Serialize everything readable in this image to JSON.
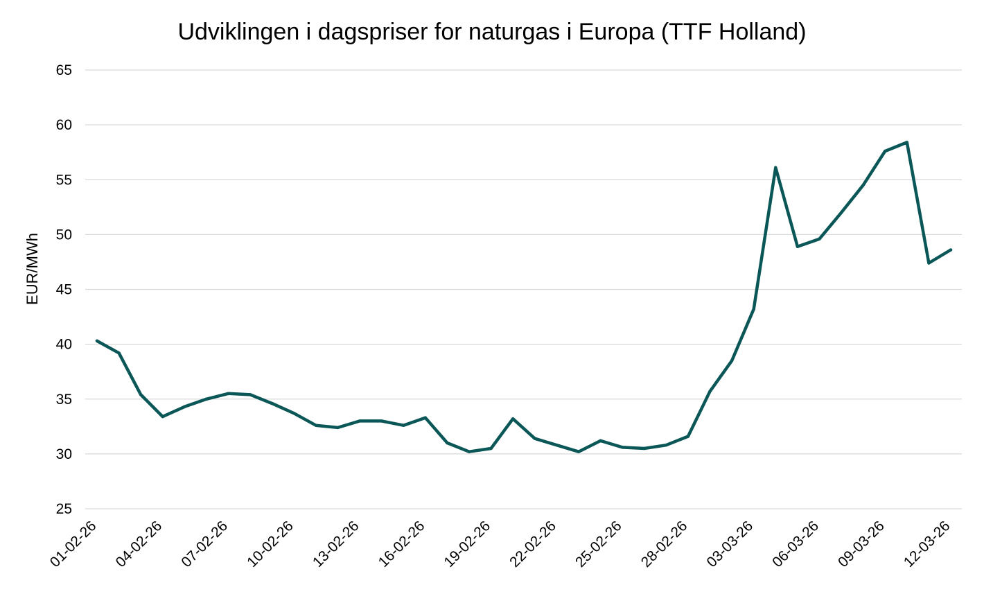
{
  "chart_data": {
    "type": "line",
    "title": "Udviklingen i dagspriser for naturgas i Europa (TTF Holland)",
    "xlabel": "",
    "ylabel": "EUR/MWh",
    "ylim": [
      25,
      65
    ],
    "yticks": [
      25,
      30,
      35,
      40,
      45,
      50,
      55,
      60,
      65
    ],
    "grid": true,
    "legend": "none",
    "line_color": "#0b5757",
    "x": [
      "01-02-26",
      "02-02-26",
      "03-02-26",
      "04-02-26",
      "05-02-26",
      "06-02-26",
      "07-02-26",
      "08-02-26",
      "09-02-26",
      "10-02-26",
      "11-02-26",
      "12-02-26",
      "13-02-26",
      "14-02-26",
      "15-02-26",
      "16-02-26",
      "17-02-26",
      "18-02-26",
      "19-02-26",
      "20-02-26",
      "21-02-26",
      "22-02-26",
      "23-02-26",
      "24-02-26",
      "25-02-26",
      "26-02-26",
      "27-02-26",
      "28-02-26",
      "01-03-26",
      "02-03-26",
      "03-03-26",
      "04-03-26",
      "05-03-26",
      "06-03-26",
      "07-03-26",
      "08-03-26",
      "09-03-26",
      "10-03-26",
      "11-03-26",
      "12-03-26"
    ],
    "x_tick_labels": [
      "01-02-26",
      "04-02-26",
      "07-02-26",
      "10-02-26",
      "13-02-26",
      "16-02-26",
      "19-02-26",
      "22-02-26",
      "25-02-26",
      "28-02-26",
      "03-03-26",
      "06-03-26",
      "09-03-26",
      "12-03-26"
    ],
    "series": [
      {
        "name": "TTF Holland",
        "values": [
          40.3,
          39.2,
          35.4,
          33.4,
          34.3,
          35.0,
          35.5,
          35.4,
          34.6,
          33.7,
          32.6,
          32.4,
          33.0,
          33.0,
          32.6,
          33.3,
          31.0,
          30.2,
          30.5,
          33.2,
          31.4,
          30.8,
          30.2,
          31.2,
          30.6,
          30.5,
          30.8,
          31.6,
          35.7,
          38.5,
          43.2,
          56.1,
          48.9,
          49.6,
          52.0,
          54.5,
          57.6,
          58.4,
          47.4,
          48.6
        ]
      }
    ]
  }
}
